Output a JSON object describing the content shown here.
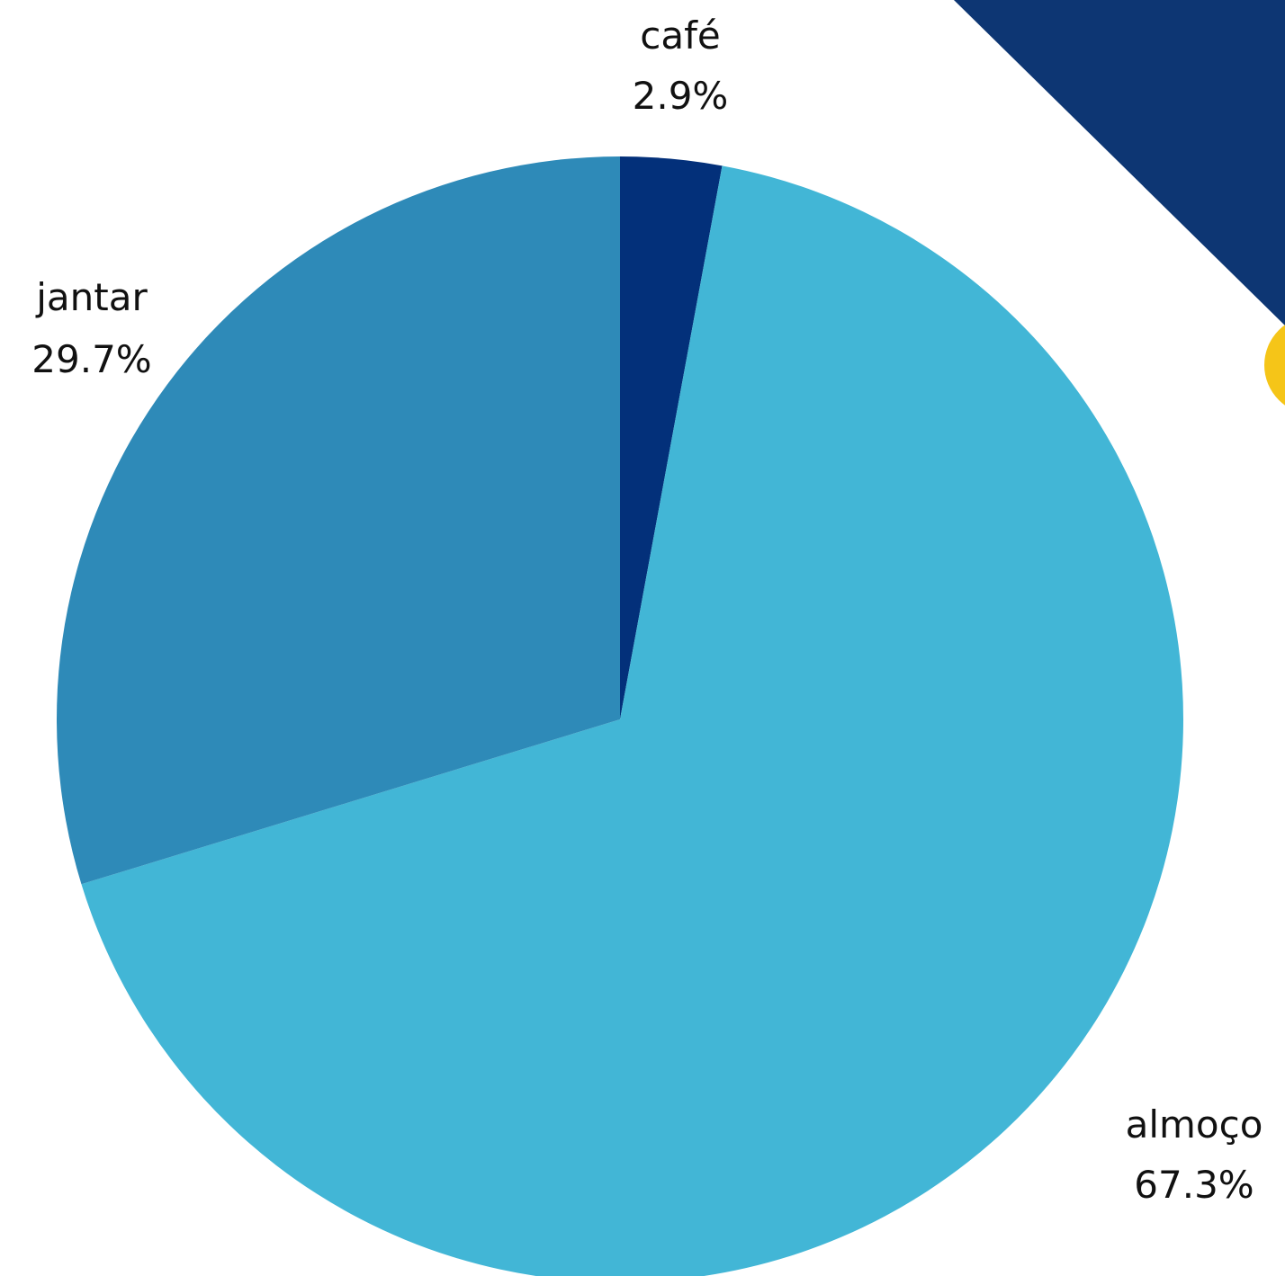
{
  "chart_data": {
    "type": "pie",
    "slices": [
      {
        "label": "café",
        "value": 2.9,
        "display": "2.9%",
        "color": "#03307A"
      },
      {
        "label": "almoço",
        "value": 67.3,
        "display": "67.3%",
        "color": "#42B6D6"
      },
      {
        "label": "jantar",
        "value": 29.7,
        "display": "29.7%",
        "color": "#2E8AB8"
      }
    ],
    "start_angle": "12 o'clock",
    "direction": "clockwise"
  },
  "decoration": {
    "corner_color": "#0D3673",
    "dot_color": "#F5C518"
  }
}
